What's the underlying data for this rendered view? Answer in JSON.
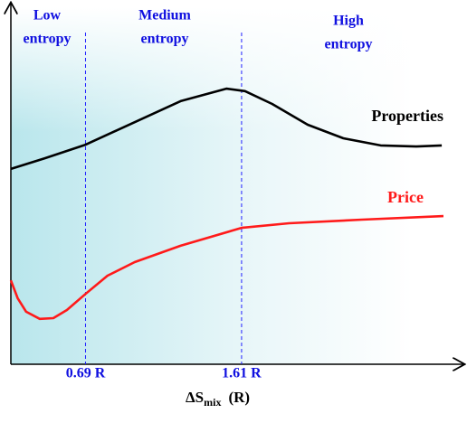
{
  "chart_data": {
    "type": "line",
    "annotations": [
      {
        "lines": [
          "Low",
          "entropy"
        ]
      },
      {
        "lines": [
          "Medium",
          "entropy"
        ]
      },
      {
        "lines": [
          "High",
          "entropy"
        ]
      }
    ],
    "x_label": {
      "main": "ΔS",
      "sub": "mix",
      "unit": "(R)"
    },
    "xlim": [
      0.25,
      2.88
    ],
    "ylim": [
      0,
      100
    ],
    "xticks": [
      {
        "value": 0.69,
        "label": "0.69 R"
      },
      {
        "value": 1.61,
        "label": "1.61 R"
      }
    ],
    "series": [
      {
        "name": "Properties",
        "color": "#000000",
        "x": [
          0.25,
          0.45,
          0.69,
          0.98,
          1.25,
          1.52,
          1.63,
          1.79,
          2.0,
          2.21,
          2.43,
          2.64,
          2.79
        ],
        "values": [
          54.7,
          57.7,
          61.5,
          67.8,
          73.7,
          77.2,
          76.5,
          72.9,
          67.1,
          63.3,
          61.3,
          61.0,
          61.3
        ]
      },
      {
        "name": "Price",
        "color": "#ff1a1a",
        "x": [
          0.25,
          0.29,
          0.34,
          0.42,
          0.5,
          0.58,
          0.69,
          0.82,
          0.98,
          1.25,
          1.61,
          1.89,
          2.32,
          2.8
        ],
        "values": [
          23.5,
          18.5,
          14.7,
          12.7,
          12.9,
          15.2,
          19.7,
          24.8,
          28.6,
          33.2,
          38.2,
          39.5,
          40.5,
          41.5
        ]
      }
    ]
  }
}
